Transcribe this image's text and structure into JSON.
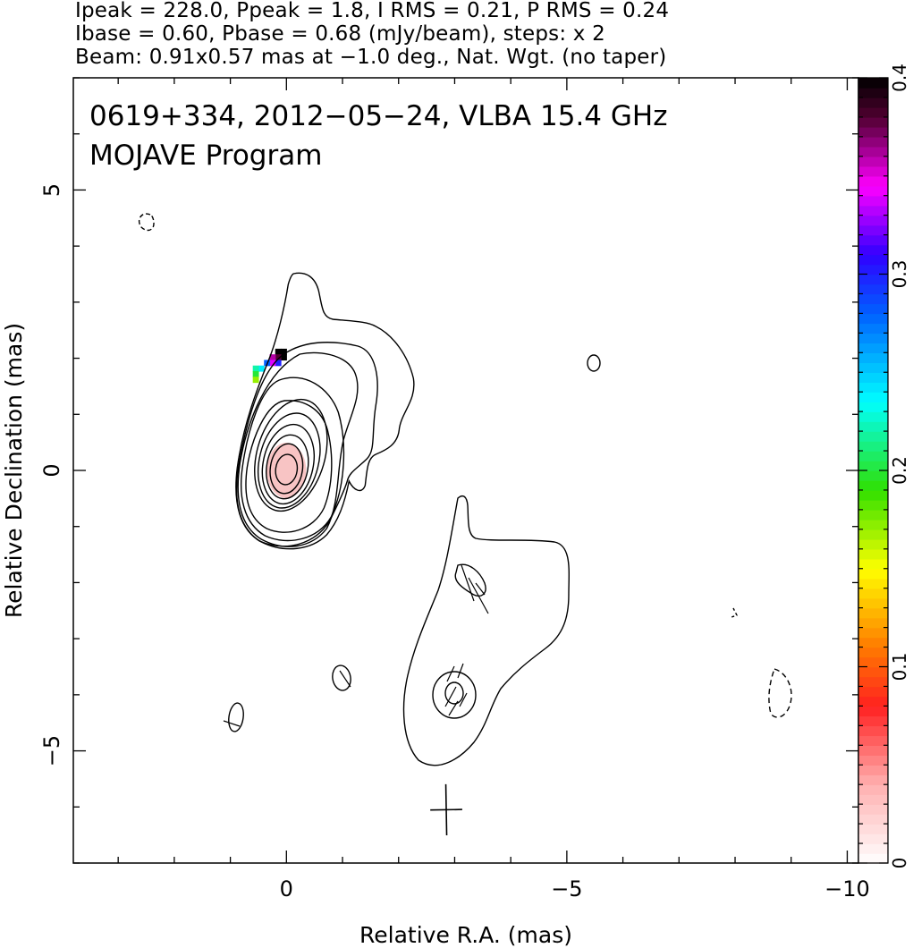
{
  "header": {
    "line1": "Ipeak = 228.0, Ppeak = 1.8, I RMS = 0.21, P RMS = 0.24",
    "line2": "Ibase = 0.60, Pbase = 0.68 (mJy/beam), steps: x 2",
    "line3": "Beam: 0.91x0.57 mas at −1.0 deg., Nat. Wgt. (no taper)"
  },
  "chart_data": {
    "type": "contour",
    "title_line1": "0619+334, 2012−05−24, VLBA 15.4 GHz",
    "title_line2": "MOJAVE Program",
    "xlabel": "Relative R.A. (mas)",
    "ylabel": "Relative Declination (mas)",
    "xlim": [
      3.8,
      -10.2
    ],
    "ylim": [
      -7.0,
      7.0
    ],
    "x_ticks": [
      {
        "value": 0,
        "label": "0"
      },
      {
        "value": -5,
        "label": "−5"
      },
      {
        "value": -10,
        "label": "−10"
      }
    ],
    "y_ticks": [
      {
        "value": 5,
        "label": "5"
      },
      {
        "value": 0,
        "label": "0"
      },
      {
        "value": -5,
        "label": "−5"
      }
    ],
    "colorbar": {
      "range": [
        0,
        0.4
      ],
      "ticks": [
        {
          "value": 0,
          "label": "0"
        },
        {
          "value": 0.1,
          "label": "0.1"
        },
        {
          "value": 0.2,
          "label": "0.2"
        },
        {
          "value": 0.3,
          "label": "0.3"
        },
        {
          "value": 0.4,
          "label": "0.4"
        }
      ],
      "stops": [
        {
          "v": 0.0,
          "color": "#ffffff"
        },
        {
          "v": 0.04,
          "color": "#ffb0b0"
        },
        {
          "v": 0.08,
          "color": "#ff2020"
        },
        {
          "v": 0.11,
          "color": "#ff7a00"
        },
        {
          "v": 0.15,
          "color": "#ffff00"
        },
        {
          "v": 0.19,
          "color": "#30e000"
        },
        {
          "v": 0.235,
          "color": "#00ffff"
        },
        {
          "v": 0.28,
          "color": "#0060ff"
        },
        {
          "v": 0.31,
          "color": "#3000ff"
        },
        {
          "v": 0.345,
          "color": "#ff00ff"
        },
        {
          "v": 0.38,
          "color": "#500030"
        },
        {
          "v": 0.4,
          "color": "#000000"
        }
      ]
    },
    "core": {
      "center": [
        0.0,
        0.0
      ],
      "contour_levels": 9
    },
    "polarization_pixels": [
      {
        "x": 0.05,
        "y": 2.12,
        "p": 0.4
      },
      {
        "x": 0.15,
        "y": 2.12,
        "p": 0.4
      },
      {
        "x": 0.05,
        "y": 2.02,
        "p": 0.4
      },
      {
        "x": 0.15,
        "y": 2.02,
        "p": 0.38
      },
      {
        "x": 0.25,
        "y": 2.02,
        "p": 0.36
      },
      {
        "x": 0.15,
        "y": 1.92,
        "p": 0.3
      },
      {
        "x": 0.25,
        "y": 1.92,
        "p": 0.34
      },
      {
        "x": 0.35,
        "y": 1.92,
        "p": 0.28
      },
      {
        "x": 0.45,
        "y": 1.82,
        "p": 0.24
      },
      {
        "x": 0.55,
        "y": 1.82,
        "p": 0.22
      },
      {
        "x": 0.55,
        "y": 1.72,
        "p": 0.2
      },
      {
        "x": 0.55,
        "y": 1.62,
        "p": 0.17
      }
    ],
    "beam": {
      "x": -2.85,
      "y": -6.05,
      "major_mas": 0.91,
      "minor_mas": 0.57,
      "pa_deg": -1.0
    }
  }
}
